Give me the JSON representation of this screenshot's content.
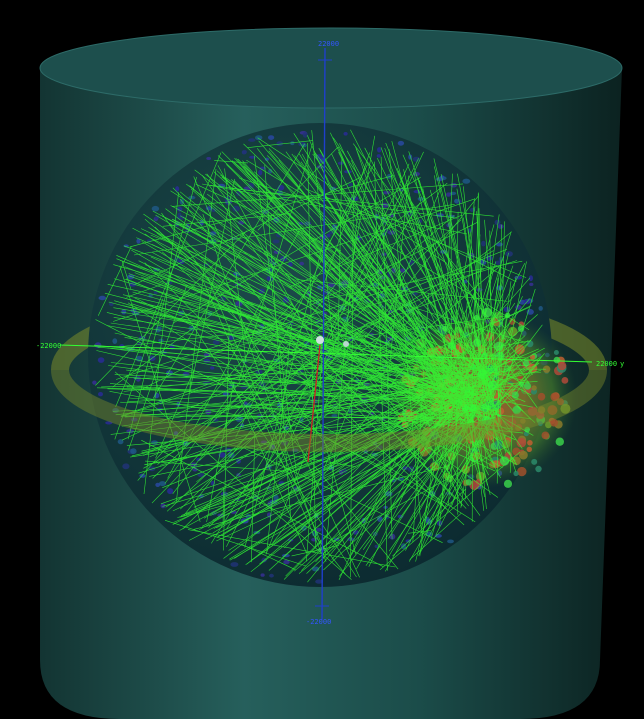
{
  "viewer": {
    "axis_labels": {
      "top": "22000",
      "bottom": "-22000",
      "left": "-22000",
      "right": "22000",
      "right_axis_name": "y"
    }
  },
  "colors": {
    "background": "#000000",
    "detector_tank": "#1f5c5a",
    "tracks": "#33ff33",
    "vertical_axis": "#1f3fcc",
    "horizontal_axis": "#33ff33",
    "ring": "#7a8a2a",
    "pmt_blue": "#2a2a9c",
    "pmt_hit_high": "#c85a2a",
    "vertex_track": "#cc2222"
  },
  "icons": [
    "detector-cylinder",
    "pmt-sphere",
    "particle-tracks",
    "hit-cluster"
  ]
}
